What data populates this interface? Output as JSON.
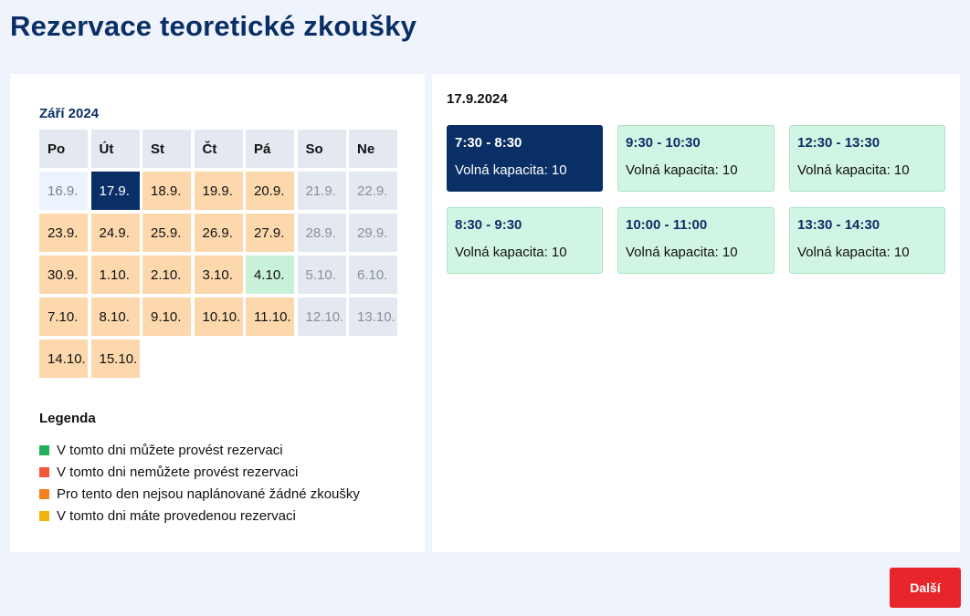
{
  "page": {
    "title": "Rezervace teoretické zkoušky"
  },
  "calendar": {
    "month_label": "Září 2024",
    "weekdays": [
      "Po",
      "Út",
      "St",
      "Čt",
      "Pá",
      "So",
      "Ne"
    ],
    "days": [
      {
        "label": "16.9.",
        "state": "past"
      },
      {
        "label": "17.9.",
        "state": "selected"
      },
      {
        "label": "18.9.",
        "state": "none"
      },
      {
        "label": "19.9.",
        "state": "none"
      },
      {
        "label": "20.9.",
        "state": "none"
      },
      {
        "label": "21.9.",
        "state": "weekend"
      },
      {
        "label": "22.9.",
        "state": "weekend"
      },
      {
        "label": "23.9.",
        "state": "none"
      },
      {
        "label": "24.9.",
        "state": "none"
      },
      {
        "label": "25.9.",
        "state": "none"
      },
      {
        "label": "26.9.",
        "state": "none"
      },
      {
        "label": "27.9.",
        "state": "none"
      },
      {
        "label": "28.9.",
        "state": "weekend"
      },
      {
        "label": "29.9.",
        "state": "weekend"
      },
      {
        "label": "30.9.",
        "state": "none"
      },
      {
        "label": "1.10.",
        "state": "none"
      },
      {
        "label": "2.10.",
        "state": "none"
      },
      {
        "label": "3.10.",
        "state": "none"
      },
      {
        "label": "4.10.",
        "state": "available"
      },
      {
        "label": "5.10.",
        "state": "weekend"
      },
      {
        "label": "6.10.",
        "state": "weekend"
      },
      {
        "label": "7.10.",
        "state": "none"
      },
      {
        "label": "8.10.",
        "state": "none"
      },
      {
        "label": "9.10.",
        "state": "none"
      },
      {
        "label": "10.10.",
        "state": "none"
      },
      {
        "label": "11.10.",
        "state": "none"
      },
      {
        "label": "12.10.",
        "state": "weekend"
      },
      {
        "label": "13.10.",
        "state": "weekend"
      },
      {
        "label": "14.10.",
        "state": "none"
      },
      {
        "label": "15.10.",
        "state": "none"
      }
    ]
  },
  "legend": {
    "title": "Legenda",
    "items": [
      {
        "label": "V tomto dni můžete provést rezervaci",
        "color": "#22b05a"
      },
      {
        "label": "V tomto dni nemůžete provést rezervaci",
        "color": "#f2573c"
      },
      {
        "label": "Pro tento den nejsou naplánované žádné zkoušky",
        "color": "#f5821f"
      },
      {
        "label": "V tomto dni máte provedenou rezervaci",
        "color": "#f2b30c"
      }
    ]
  },
  "slots": {
    "date": "17.9.2024",
    "items": [
      {
        "time": "7:30 - 8:30",
        "capacity": "Volná kapacita: 10",
        "selected": true
      },
      {
        "time": "9:30 - 10:30",
        "capacity": "Volná kapacita: 10",
        "selected": false
      },
      {
        "time": "12:30 - 13:30",
        "capacity": "Volná kapacita: 10",
        "selected": false
      },
      {
        "time": "8:30 - 9:30",
        "capacity": "Volná kapacita: 10",
        "selected": false
      },
      {
        "time": "10:00 - 11:00",
        "capacity": "Volná kapacita: 10",
        "selected": false
      },
      {
        "time": "13:30 - 14:30",
        "capacity": "Volná kapacita: 10",
        "selected": false
      }
    ]
  },
  "actions": {
    "next_label": "Další"
  }
}
